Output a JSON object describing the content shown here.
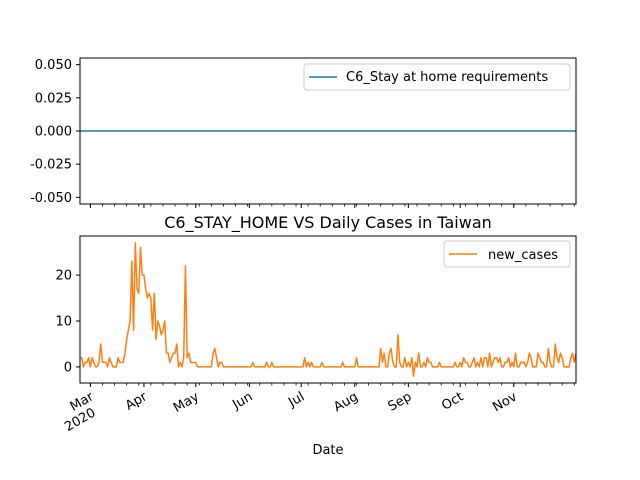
{
  "chart_data": [
    {
      "type": "line",
      "title": "",
      "xlabel": "",
      "ylabel": "",
      "ylim": [
        -0.055,
        0.055
      ],
      "yticks": [
        "-0.050",
        "-0.025",
        "0.000",
        "0.025",
        "0.050"
      ],
      "ytick_values": [
        -0.05,
        -0.025,
        0.0,
        0.025,
        0.05
      ],
      "legend_position": "top-right",
      "series": [
        {
          "name": "C6_Stay at home requirements",
          "color": "#1f77b4",
          "value": 0.0
        }
      ]
    },
    {
      "type": "line",
      "title": "C6_STAY_HOME VS Daily Cases in Taiwan",
      "xlabel": "Date",
      "ylabel": "",
      "ylim": [
        -3.5,
        28.5
      ],
      "yticks": [
        "0",
        "10",
        "20"
      ],
      "ytick_values": [
        0,
        10,
        20
      ],
      "legend_position": "top-right",
      "x_start": "2020-02-24",
      "x_end": "2020-11-01",
      "month_ticks": [
        {
          "label": "Mar",
          "sublabel": "2020",
          "day": 6
        },
        {
          "label": "Apr",
          "sublabel": "",
          "day": 37
        },
        {
          "label": "May",
          "sublabel": "",
          "day": 67
        },
        {
          "label": "Jun",
          "sublabel": "",
          "day": 98
        },
        {
          "label": "Jul",
          "sublabel": "",
          "day": 128
        },
        {
          "label": "Aug",
          "sublabel": "",
          "day": 159
        },
        {
          "label": "Sep",
          "sublabel": "",
          "day": 190
        },
        {
          "label": "Oct",
          "sublabel": "",
          "day": 220
        },
        {
          "label": "Nov",
          "sublabel": "",
          "day": 251
        }
      ],
      "series": [
        {
          "name": "new_cases",
          "color": "#ff7f0e",
          "values": [
            2,
            2,
            0,
            1,
            1,
            2,
            0,
            2,
            1,
            0,
            0,
            1,
            5,
            1,
            1,
            1,
            0,
            2,
            1,
            0,
            0,
            0,
            2,
            1,
            1,
            1,
            3,
            6,
            8,
            10,
            23,
            8,
            27,
            17,
            16,
            26,
            20,
            20,
            17,
            15,
            16,
            15,
            8,
            16,
            6,
            10,
            9,
            7,
            8,
            10,
            3,
            3,
            1,
            2,
            3,
            3,
            5,
            0,
            1,
            0,
            2,
            22,
            2,
            3,
            1,
            1,
            1,
            1,
            0,
            0,
            0,
            0,
            0,
            0,
            0,
            0,
            0,
            3,
            4,
            2,
            0,
            1,
            1,
            0,
            0,
            0,
            0,
            0,
            0,
            0,
            0,
            0,
            0,
            0,
            0,
            0,
            0,
            0,
            0,
            0,
            1,
            0,
            0,
            0,
            0,
            0,
            0,
            0,
            1,
            0,
            0,
            1,
            0,
            0,
            0,
            0,
            0,
            0,
            0,
            0,
            0,
            0,
            0,
            0,
            0,
            0,
            0,
            0,
            0,
            0,
            2,
            0,
            1,
            0,
            1,
            0,
            0,
            0,
            0,
            0,
            1,
            0,
            0,
            0,
            0,
            0,
            0,
            0,
            0,
            0,
            0,
            0,
            1,
            0,
            0,
            0,
            0,
            0,
            0,
            0,
            2,
            0,
            0,
            0,
            0,
            0,
            0,
            0,
            0,
            0,
            0,
            0,
            0,
            0,
            4,
            1,
            3,
            0,
            0,
            3,
            4,
            1,
            0,
            0,
            7,
            1,
            0,
            0,
            2,
            0,
            1,
            0,
            2,
            -2,
            1,
            0,
            3,
            0,
            0,
            1,
            0,
            2,
            1,
            1,
            0,
            0,
            0,
            0,
            1,
            0,
            0,
            0,
            0,
            0,
            0,
            0,
            0,
            1,
            0,
            0,
            1,
            0,
            2,
            1,
            1,
            0,
            0,
            1,
            2,
            0,
            1,
            0,
            2,
            0,
            2,
            2,
            0,
            3,
            0,
            1,
            2,
            2,
            1,
            2,
            0,
            0,
            1,
            1,
            2,
            0,
            1,
            0,
            3,
            0,
            0,
            1,
            1,
            1,
            0,
            1,
            3,
            2,
            0,
            0,
            0,
            3,
            2,
            1,
            1,
            0,
            0,
            4,
            1,
            0,
            0,
            5,
            2,
            1,
            3,
            2,
            0,
            0,
            0,
            0,
            2,
            3,
            1,
            3
          ]
        }
      ]
    }
  ]
}
